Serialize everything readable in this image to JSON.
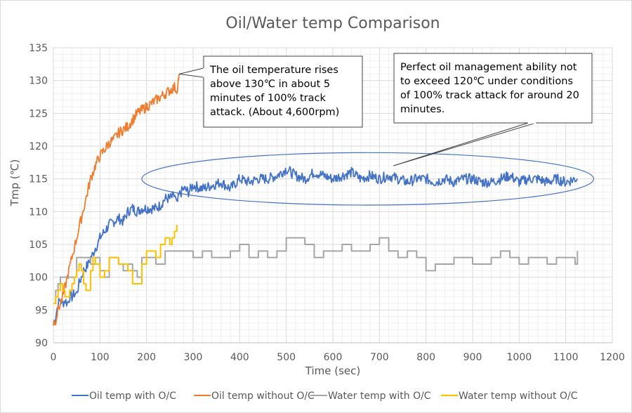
{
  "chart_data": {
    "type": "line",
    "title": "Oil/Water temp Comparison",
    "xlabel": "Time (sec)",
    "ylabel": "Tmp (℃)",
    "xlim": [
      0,
      1200
    ],
    "ylim": [
      90,
      135
    ],
    "x_ticks": [
      0,
      100,
      200,
      300,
      400,
      500,
      600,
      700,
      800,
      900,
      1000,
      1100,
      1200
    ],
    "y_ticks": [
      90,
      95,
      100,
      105,
      110,
      115,
      120,
      125,
      130,
      135
    ],
    "x_tick_labels": [
      "0",
      "100",
      "200",
      "300",
      "400",
      "500",
      "600",
      "700",
      "800",
      "900",
      "1000",
      "1100",
      "1200"
    ],
    "y_tick_labels": [
      "90",
      "95",
      "100",
      "105",
      "110",
      "115",
      "120",
      "125",
      "130",
      "135"
    ],
    "grid": true,
    "legend_position": "bottom",
    "series": [
      {
        "name": "Oil temp with O/C",
        "color": "#4472c4",
        "x": [
          0,
          5,
          10,
          15,
          20,
          25,
          30,
          35,
          40,
          45,
          50,
          55,
          60,
          65,
          70,
          75,
          80,
          85,
          90,
          95,
          100,
          110,
          120,
          130,
          140,
          150,
          160,
          170,
          180,
          190,
          200,
          210,
          220,
          230,
          240,
          250,
          260,
          265,
          270,
          280,
          290,
          300,
          320,
          340,
          360,
          380,
          400,
          420,
          440,
          460,
          480,
          500,
          520,
          540,
          560,
          580,
          600,
          620,
          640,
          660,
          680,
          700,
          720,
          740,
          760,
          780,
          800,
          820,
          840,
          860,
          880,
          900,
          920,
          940,
          960,
          980,
          1000,
          1020,
          1040,
          1060,
          1080,
          1100,
          1120,
          1125
        ],
        "values": [
          93,
          94,
          96,
          96.5,
          96,
          96.5,
          96,
          97,
          97,
          97.5,
          97.5,
          99,
          100,
          101,
          101.5,
          102,
          103,
          103.5,
          104.5,
          105,
          106,
          107,
          108,
          108.5,
          109,
          108.5,
          110,
          110.5,
          110,
          110.5,
          110.5,
          110.5,
          110.5,
          111,
          112,
          112,
          112.5,
          111,
          112.5,
          113.5,
          113,
          114,
          113.5,
          114,
          114.5,
          113.5,
          115,
          114.5,
          115,
          115,
          115.5,
          116.5,
          115.5,
          115,
          116,
          115.5,
          115,
          115.5,
          116,
          115,
          115.5,
          115,
          115.5,
          115,
          114.5,
          115,
          115,
          114.5,
          115,
          114.5,
          115,
          115,
          114.5,
          114.5,
          115,
          115.5,
          114.5,
          115,
          115,
          114.5,
          115,
          114.5,
          115,
          115
        ]
      },
      {
        "name": "Oil temp without O/C",
        "color": "#ed7d31",
        "x": [
          0,
          5,
          10,
          15,
          20,
          25,
          30,
          35,
          40,
          45,
          50,
          55,
          60,
          65,
          70,
          80,
          90,
          100,
          110,
          120,
          130,
          140,
          150,
          160,
          170,
          180,
          190,
          200,
          210,
          220,
          230,
          240,
          250,
          260,
          265,
          268,
          270
        ],
        "values": [
          93,
          93.5,
          95,
          96,
          97,
          98.5,
          100,
          101.5,
          103,
          104.5,
          106,
          107.5,
          109,
          110.5,
          112,
          115,
          117,
          118.5,
          119.5,
          120.5,
          121,
          122,
          122.5,
          123,
          124,
          125,
          125.5,
          126,
          126.5,
          127,
          127.5,
          128,
          128.5,
          129,
          128.5,
          130,
          131
        ]
      },
      {
        "name": "Water temp with O/C",
        "color": "#a5a5a5",
        "x": [
          0,
          5,
          10,
          15,
          30,
          45,
          50,
          60,
          70,
          80,
          90,
          100,
          110,
          120,
          130,
          140,
          150,
          160,
          170,
          180,
          190,
          200,
          220,
          240,
          260,
          280,
          300,
          320,
          340,
          360,
          380,
          400,
          420,
          440,
          460,
          480,
          500,
          520,
          540,
          560,
          580,
          600,
          620,
          640,
          660,
          680,
          700,
          720,
          740,
          760,
          780,
          800,
          820,
          840,
          860,
          880,
          900,
          920,
          940,
          960,
          980,
          1000,
          1020,
          1040,
          1060,
          1080,
          1100,
          1120,
          1125
        ],
        "values": [
          96,
          98,
          99,
          100,
          100,
          100,
          103,
          103,
          103,
          102,
          103,
          101,
          100,
          103,
          103,
          102,
          101,
          102,
          101,
          100,
          103,
          103,
          102,
          104,
          104,
          104,
          103,
          104,
          103,
          103,
          104,
          105,
          103,
          104,
          103,
          104,
          106,
          106,
          105,
          103,
          104,
          104,
          105,
          104,
          104,
          105,
          106,
          104,
          103,
          104,
          103,
          101,
          102,
          102,
          103,
          103,
          102,
          102,
          103,
          104,
          103,
          102,
          103,
          103,
          102,
          103,
          103,
          102,
          104
        ]
      },
      {
        "name": "Water temp without O/C",
        "color": "#ffc000",
        "x": [
          0,
          5,
          10,
          15,
          20,
          25,
          30,
          35,
          40,
          45,
          50,
          55,
          60,
          65,
          70,
          80,
          85,
          90,
          100,
          110,
          120,
          130,
          140,
          150,
          160,
          170,
          180,
          190,
          200,
          210,
          220,
          230,
          240,
          250,
          255,
          260,
          265
        ],
        "values": [
          96,
          97,
          98,
          99,
          98,
          97,
          97,
          98,
          99,
          100,
          101,
          102,
          101,
          99,
          98,
          101,
          103,
          102,
          100,
          101,
          103,
          103,
          102,
          102,
          101,
          99,
          99,
          102,
          104,
          104,
          103,
          105,
          106,
          105,
          106,
          107,
          108
        ]
      }
    ],
    "annotations": [
      {
        "text_lines": [
          "The oil temperature rises",
          "above 130℃ in about 5",
          "minutes of 100% track",
          "attack. (About 4,600rpm)"
        ],
        "points_to": {
          "x": 270,
          "y": 131
        }
      },
      {
        "text_lines": [
          "Perfect oil management ability not",
          "to exceed 120℃ under conditions",
          "of 100% track attack for around 20",
          "minutes."
        ],
        "points_to": {
          "x": 730,
          "y": 117
        }
      }
    ],
    "highlight_ellipse": {
      "x_range": [
        190,
        1160
      ],
      "y_range": [
        111,
        119
      ],
      "color": "#4472c4"
    }
  }
}
